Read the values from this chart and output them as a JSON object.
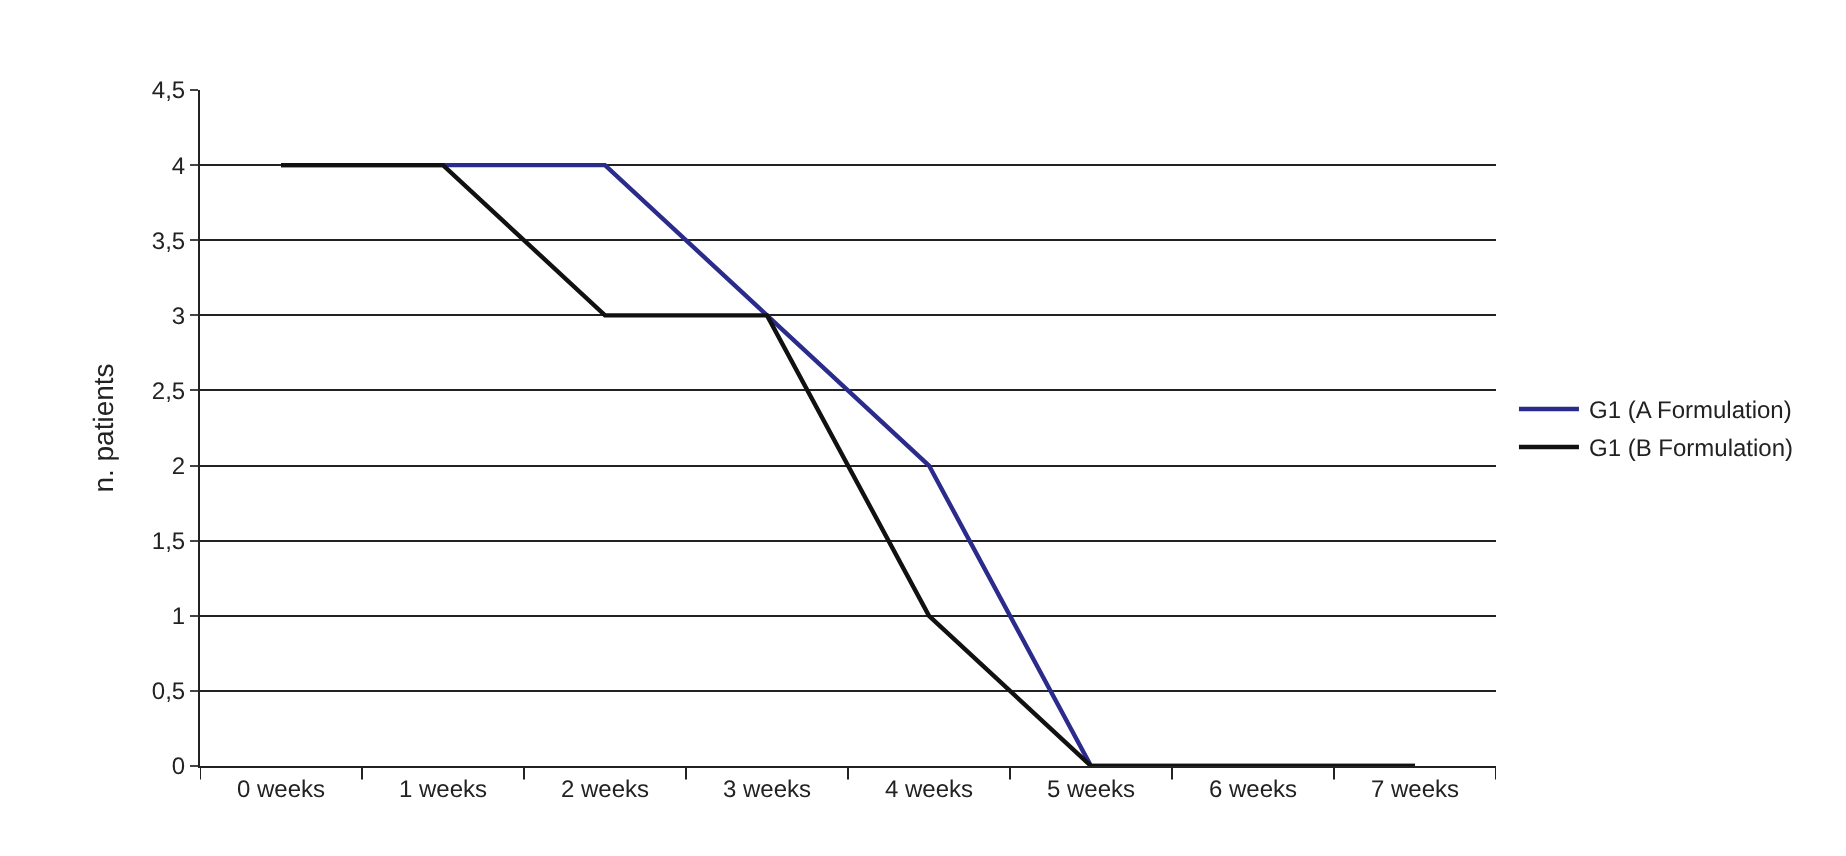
{
  "chart_data": {
    "type": "line",
    "ylabel": "n. patients",
    "categories": [
      "0 weeks",
      "1 weeks",
      "2 weeks",
      "3 weeks",
      "4 weeks",
      "5 weeks",
      "6 weeks",
      "7 weeks"
    ],
    "series": [
      {
        "name": "G1 (A Formulation)",
        "color": "#2b2b8c",
        "values": [
          4,
          4,
          4,
          3,
          2,
          0,
          0,
          0
        ]
      },
      {
        "name": "G1 (B Formulation)",
        "color": "#111111",
        "values": [
          4,
          4,
          3,
          3,
          1,
          0,
          0,
          0
        ]
      }
    ],
    "ylim": [
      0,
      4.5
    ],
    "yticks": [
      0,
      {
        "value": 0.5,
        "label": "0,5"
      },
      1,
      {
        "value": 1.5,
        "label": "1,5"
      },
      2,
      {
        "value": 2.5,
        "label": "2,5"
      },
      3,
      {
        "value": 3.5,
        "label": "3,5"
      },
      4,
      {
        "value": 4.5,
        "label": "4,5"
      }
    ],
    "grid": "y",
    "legend": "right",
    "marker": "none",
    "line_style": "solid"
  }
}
